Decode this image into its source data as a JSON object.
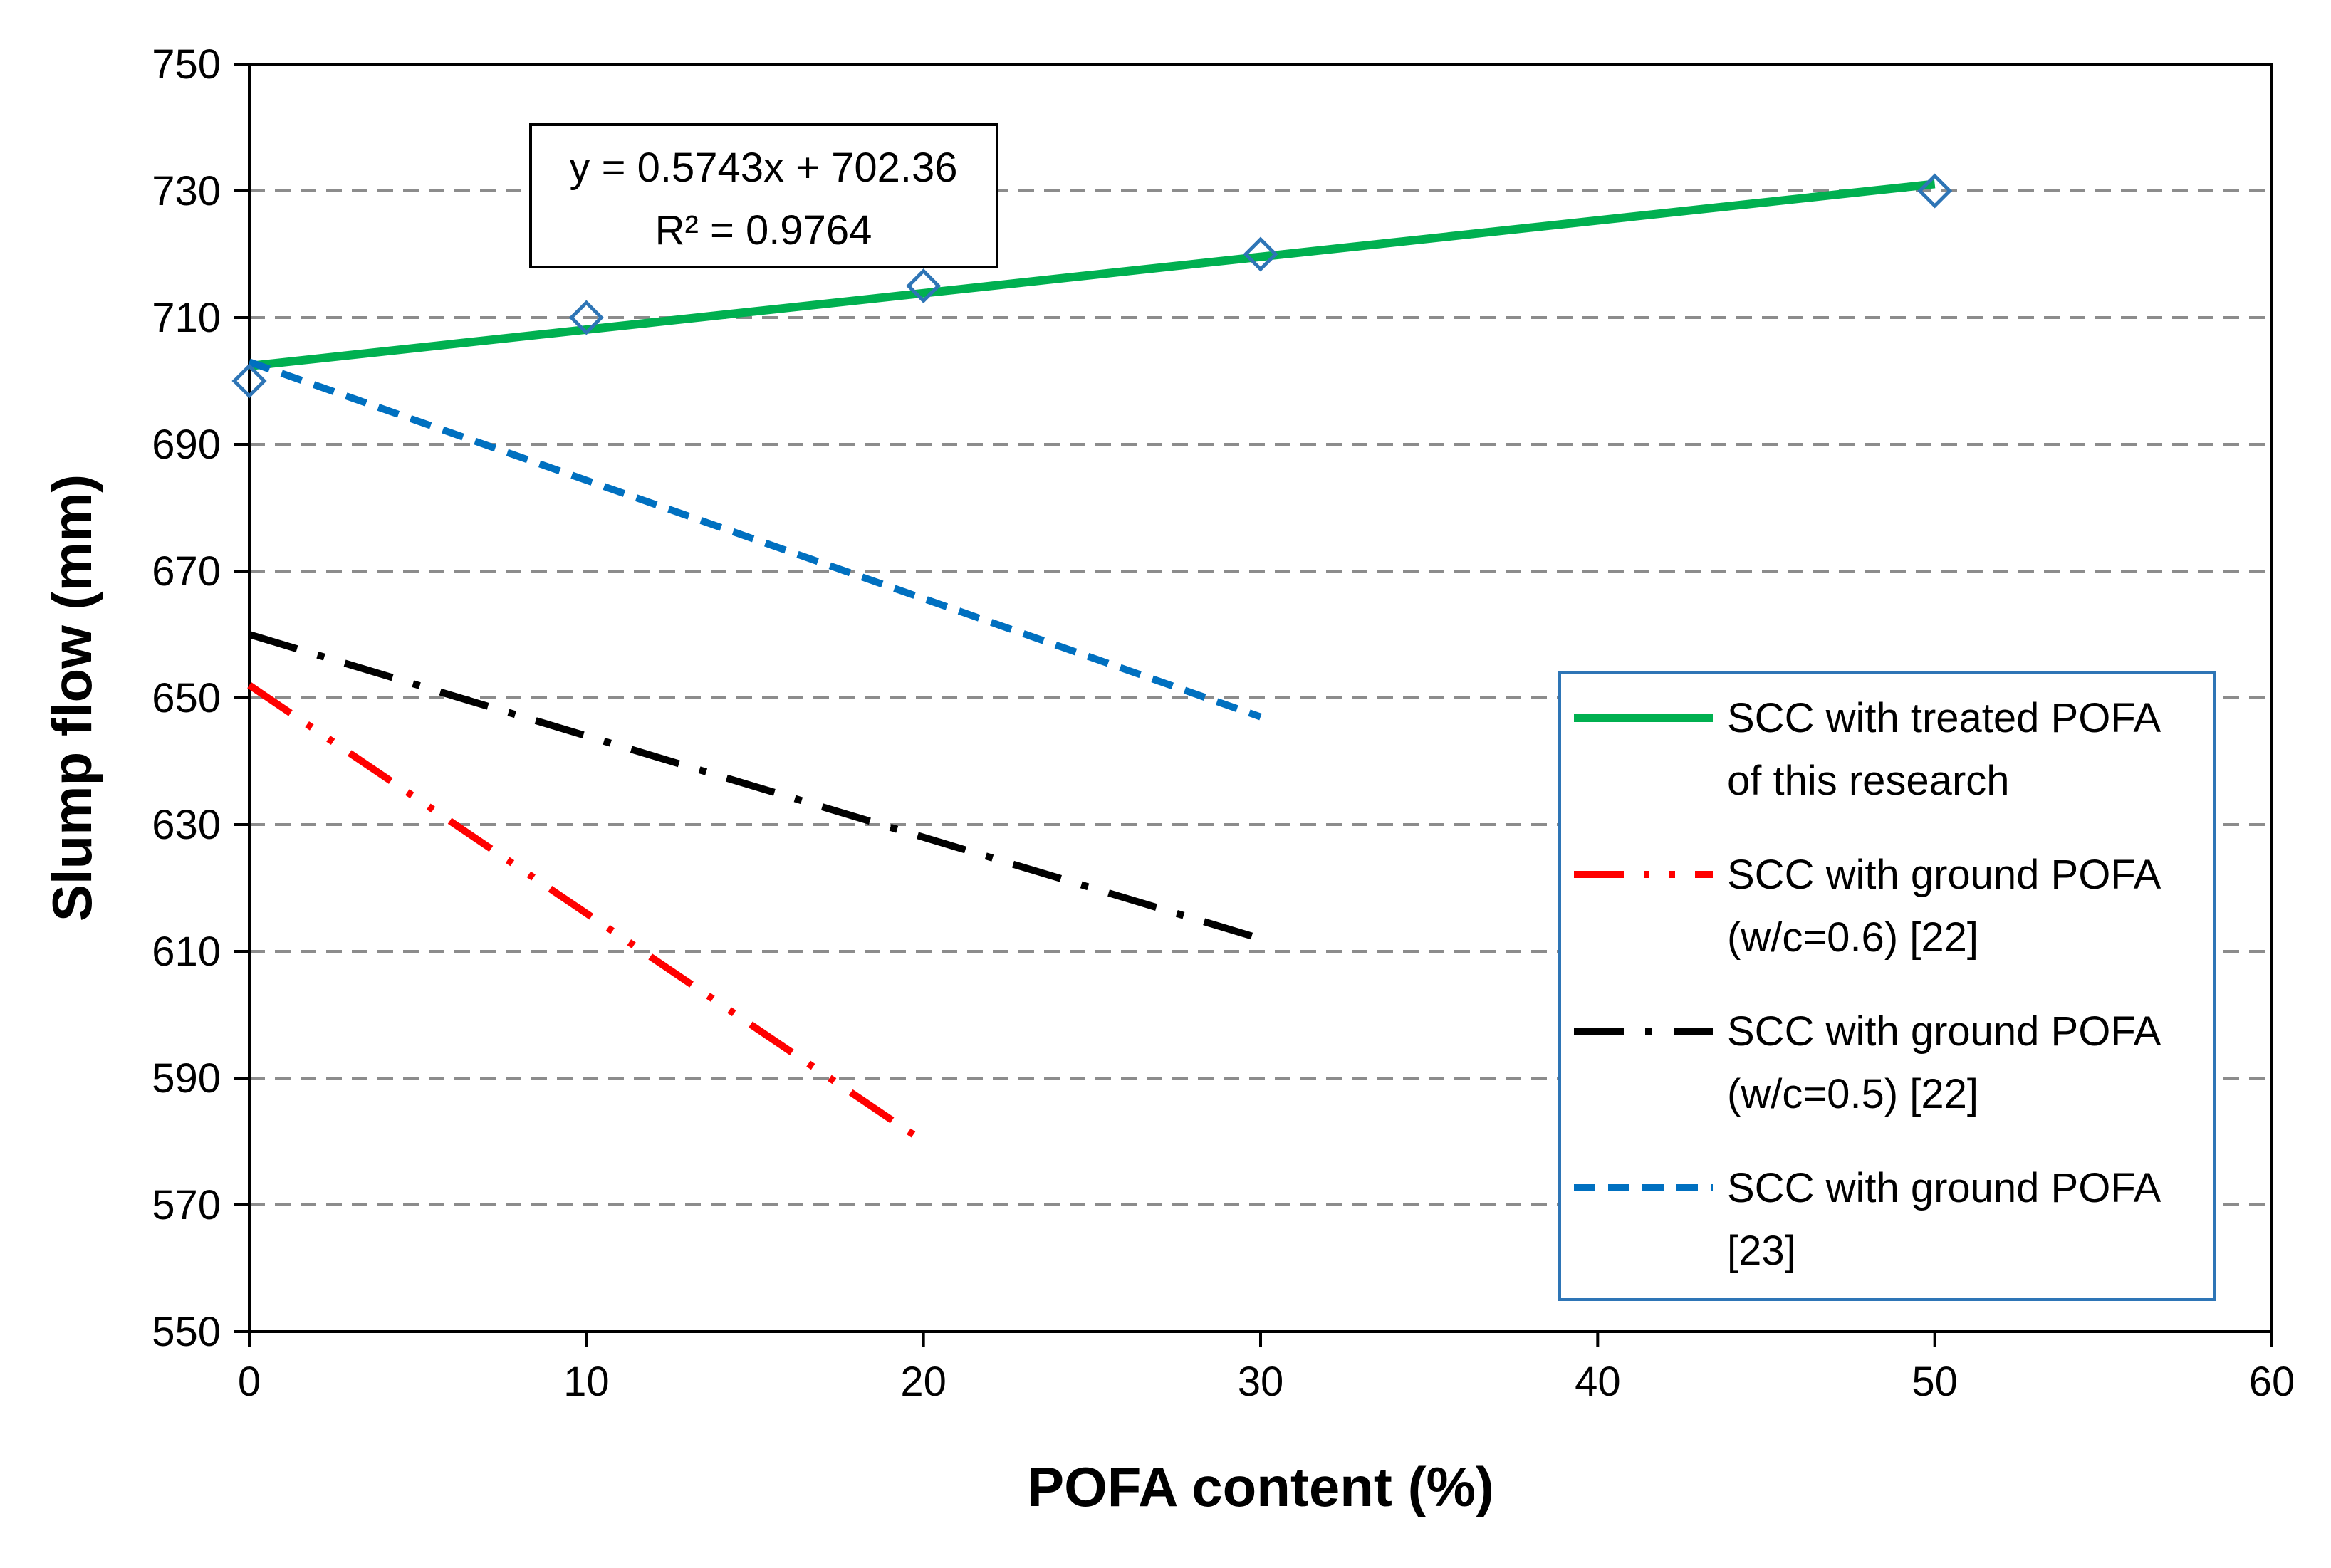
{
  "chart_data": {
    "type": "line",
    "title": "",
    "xlabel": "POFA content (%)",
    "ylabel": "Slump flow (mm)",
    "xlim": [
      0,
      60
    ],
    "ylim": [
      550,
      750
    ],
    "x_ticks": [
      0,
      10,
      20,
      30,
      40,
      50,
      60
    ],
    "y_ticks": [
      550,
      570,
      590,
      610,
      630,
      650,
      670,
      690,
      710,
      730,
      750
    ],
    "x_tick_labels": [
      "0",
      "10",
      "20",
      "30",
      "40",
      "50",
      "60"
    ],
    "y_tick_labels": [
      "550",
      "570",
      "590",
      "610",
      "630",
      "650",
      "670",
      "690",
      "710",
      "730",
      "750"
    ],
    "grid": "horizontal dashed",
    "markers": {
      "name": "Measured slump flow",
      "x": [
        0,
        10,
        20,
        30,
        50
      ],
      "y": [
        700,
        710,
        715,
        720,
        730
      ]
    },
    "series": [
      {
        "name": "SCC with treated POFA of this research",
        "legend_lines": [
          "SCC with treated POFA",
          "of this research"
        ],
        "style": "solid",
        "color": "#00B050",
        "x": [
          0,
          50
        ],
        "y": [
          702.36,
          731.08
        ]
      },
      {
        "name": "SCC with ground POFA (w/c=0.6) [22]",
        "legend_lines": [
          "SCC with ground POFA",
          "(w/c=0.6) [22]"
        ],
        "style": "long-dash-dot-dot",
        "color": "#FF0000",
        "x": [
          0,
          20
        ],
        "y": [
          652,
          580
        ]
      },
      {
        "name": "SCC with ground POFA (w/c=0.5) [22]",
        "legend_lines": [
          "SCC with ground POFA",
          "(w/c=0.5) [22]"
        ],
        "style": "long-dash-dot",
        "color": "#000000",
        "x": [
          0,
          30
        ],
        "y": [
          660,
          612
        ]
      },
      {
        "name": "SCC with ground POFA [23]",
        "legend_lines": [
          "SCC with ground POFA",
          "[23]"
        ],
        "style": "dashed",
        "color": "#0070C0",
        "x": [
          0,
          30
        ],
        "y": [
          703,
          647
        ]
      }
    ],
    "trendline_equation": "y = 0.5743x + 702.36",
    "trendline_r2": "R² = 0.9764",
    "legend_position": "center-right",
    "marker_color": "#2E75B6"
  }
}
